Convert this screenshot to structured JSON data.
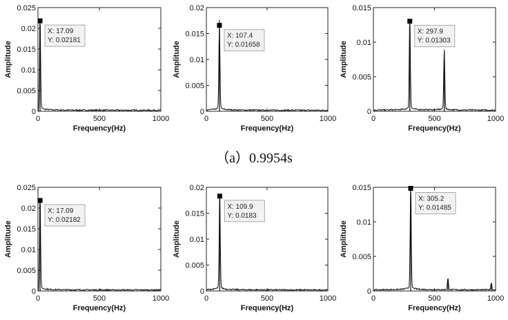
{
  "caption": "（a）0.9954s",
  "chart_data": [
    {
      "type": "line",
      "xlabel": "Frequency(Hz)",
      "ylabel": "Amplitude",
      "xlim": [
        0,
        1000
      ],
      "ylim": [
        0,
        0.025
      ],
      "xticks": [
        "0",
        "500",
        "1000"
      ],
      "yticks": [
        "0",
        "0.005",
        "0.01",
        "0.015",
        "0.02",
        "0.025"
      ],
      "peaks": [
        {
          "x": 17.09,
          "y": 0.02181
        }
      ],
      "datatip": {
        "x": 17.09,
        "y": 0.02181,
        "x_label": "X: 17.09",
        "y_label": "Y: 0.02181"
      }
    },
    {
      "type": "line",
      "xlabel": "Frequency(Hz)",
      "ylabel": "Amplitude",
      "xlim": [
        0,
        1000
      ],
      "ylim": [
        0,
        0.02
      ],
      "xticks": [
        "0",
        "500",
        "1000"
      ],
      "yticks": [
        "0",
        "0.005",
        "0.01",
        "0.015",
        "0.02"
      ],
      "peaks": [
        {
          "x": 107.4,
          "y": 0.01658
        }
      ],
      "datatip": {
        "x": 107.4,
        "y": 0.01658,
        "x_label": "X: 107.4",
        "y_label": "Y: 0.01658"
      }
    },
    {
      "type": "line",
      "xlabel": "Frequency(Hz)",
      "ylabel": "Amplitude",
      "xlim": [
        0,
        1000
      ],
      "ylim": [
        0,
        0.015
      ],
      "xticks": [
        "0",
        "500",
        "1000"
      ],
      "yticks": [
        "0",
        "0.005",
        "0.01",
        "0.015"
      ],
      "peaks": [
        {
          "x": 297.9,
          "y": 0.01303
        },
        {
          "x": 580,
          "y": 0.0085
        }
      ],
      "datatip": {
        "x": 297.9,
        "y": 0.01303,
        "x_label": "X: 297.9",
        "y_label": "Y: 0.01303"
      }
    },
    {
      "type": "line",
      "xlabel": "Frequency(Hz)",
      "ylabel": "Amplitude",
      "xlim": [
        0,
        1000
      ],
      "ylim": [
        0,
        0.025
      ],
      "xticks": [
        "0",
        "500",
        "1000"
      ],
      "yticks": [
        "0",
        "0.005",
        "0.01",
        "0.015",
        "0.02",
        "0.025"
      ],
      "peaks": [
        {
          "x": 17.09,
          "y": 0.02182
        }
      ],
      "datatip": {
        "x": 17.09,
        "y": 0.02182,
        "x_label": "X: 17.09",
        "y_label": "Y: 0.02182"
      }
    },
    {
      "type": "line",
      "xlabel": "Frequency(Hz)",
      "ylabel": "Amplitude",
      "xlim": [
        0,
        1000
      ],
      "ylim": [
        0,
        0.02
      ],
      "xticks": [
        "0",
        "500",
        "1000"
      ],
      "yticks": [
        "0",
        "0.005",
        "0.01",
        "0.015",
        "0.02"
      ],
      "peaks": [
        {
          "x": 109.9,
          "y": 0.0183
        }
      ],
      "datatip": {
        "x": 109.9,
        "y": 0.0183,
        "x_label": "X: 109.9",
        "y_label": "Y: 0.0183"
      }
    },
    {
      "type": "line",
      "xlabel": "Frequency(Hz)",
      "ylabel": "Amplitude",
      "xlim": [
        0,
        1000
      ],
      "ylim": [
        0,
        0.015
      ],
      "xticks": [
        "0",
        "500",
        "1000"
      ],
      "yticks": [
        "0",
        "0.005",
        "0.01",
        "0.015"
      ],
      "peaks": [
        {
          "x": 305.2,
          "y": 0.01485
        },
        {
          "x": 610,
          "y": 0.0016
        },
        {
          "x": 965,
          "y": 0.001
        }
      ],
      "datatip": {
        "x": 305.2,
        "y": 0.01485,
        "x_label": "X: 305.2",
        "y_label": "Y: 0.01485"
      }
    }
  ]
}
